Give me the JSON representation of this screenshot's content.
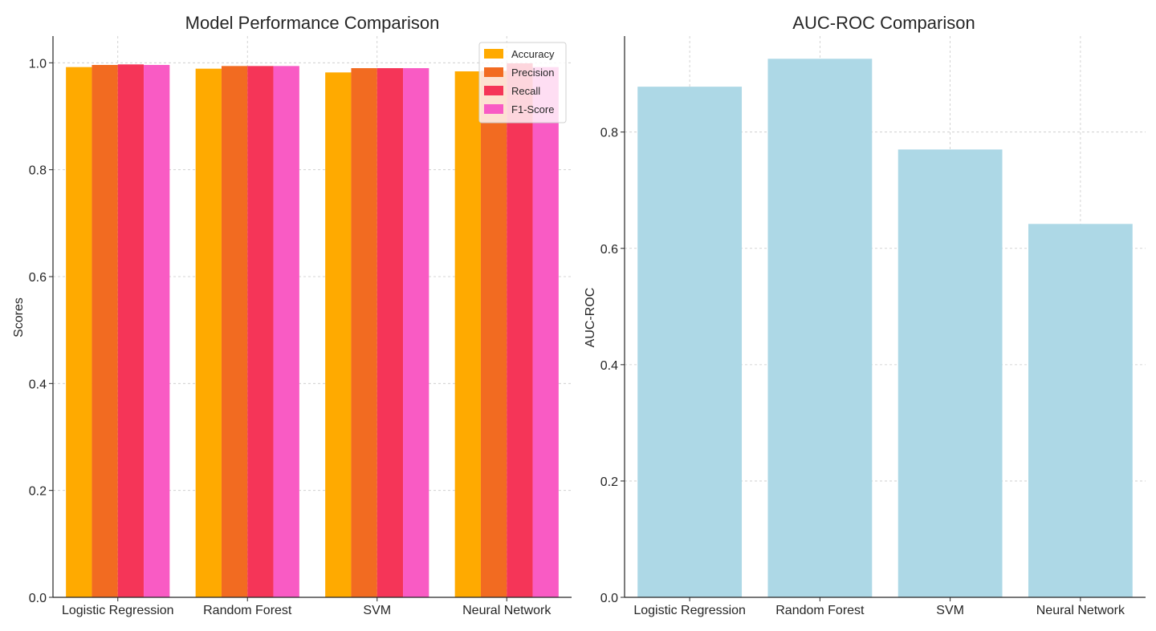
{
  "chart_data": [
    {
      "type": "bar",
      "title": "Model Performance Comparison",
      "xlabel": "",
      "ylabel": "Scores",
      "ylim": [
        0,
        1.05
      ],
      "yticks": [
        "0.0",
        "0.2",
        "0.4",
        "0.6",
        "0.8",
        "1.0"
      ],
      "categories": [
        "Logistic Regression",
        "Random Forest",
        "SVM",
        "Neural Network"
      ],
      "series": [
        {
          "name": "Accuracy",
          "color": "#FFAA00",
          "values": [
            0.992,
            0.989,
            0.982,
            0.984
          ]
        },
        {
          "name": "Precision",
          "color": "#F26B21",
          "values": [
            0.996,
            0.994,
            0.99,
            0.985
          ]
        },
        {
          "name": "Recall",
          "color": "#F53558",
          "values": [
            0.997,
            0.994,
            0.99,
            0.999
          ]
        },
        {
          "name": "F1-Score",
          "color": "#F95BC4",
          "values": [
            0.996,
            0.994,
            0.99,
            0.992
          ]
        }
      ],
      "legend": {
        "position": "top-right"
      },
      "grid": true
    },
    {
      "type": "bar",
      "title": "AUC-ROC Comparison",
      "xlabel": "",
      "ylabel": "AUC-ROC",
      "ylim": [
        0,
        0.965
      ],
      "yticks": [
        "0.0",
        "0.2",
        "0.4",
        "0.6",
        "0.8"
      ],
      "categories": [
        "Logistic Regression",
        "Random Forest",
        "SVM",
        "Neural Network"
      ],
      "series": [
        {
          "name": "",
          "color": "#ADD8E6",
          "values": [
            0.878,
            0.926,
            0.77,
            0.642
          ]
        }
      ],
      "grid": true
    }
  ]
}
